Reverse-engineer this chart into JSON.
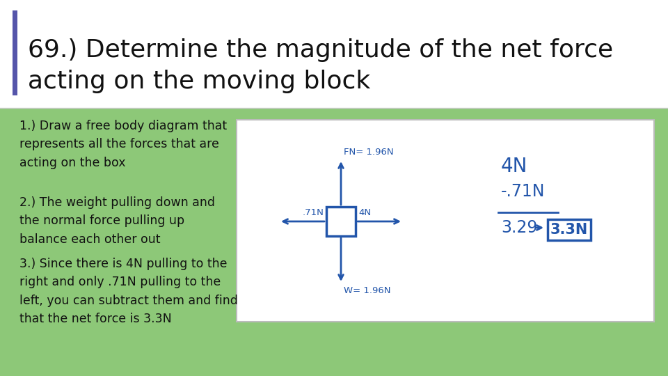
{
  "bg_color": "#8dc878",
  "header_bg": "#ffffff",
  "accent_bar_color": "#5555aa",
  "title_line1": "69.) Determine the magnitude of the net force",
  "title_line2": "acting on the moving block",
  "title_fontsize": 26,
  "title_color": "#111111",
  "body_text_1": "1.) Draw a free body diagram that\nrepresents all the forces that are\nacting on the box",
  "body_text_2": "2.) The weight pulling down and\nthe normal force pulling up\nbalance each other out",
  "body_text_3": "3.) Since there is 4N pulling to the\nright and only .71N pulling to the\nleft, you can subtract them and find\nthat the net force is 3.3N",
  "body_fontsize": 12.5,
  "body_color": "#111111",
  "diagram_bg": "#ffffff",
  "diagram_border": "#bbbbbb",
  "arrow_color": "#2255aa",
  "fn_label": "FN= 1.96N",
  "w_label": "W= 1.96N",
  "left_label": ".71N",
  "right_label": "4N",
  "calc_4n": "4N",
  "calc_neg71": "-.71N",
  "calc_329": "3.29",
  "calc_33n": "3.3N"
}
